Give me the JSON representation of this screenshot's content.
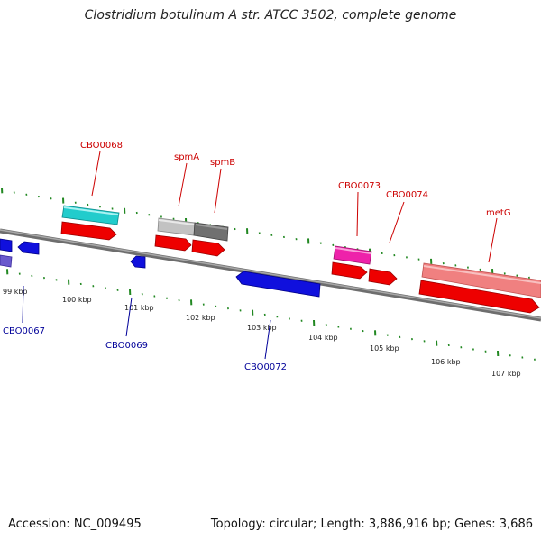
{
  "title": "Clostridium botulinum A str. ATCC 3502, complete genome",
  "footer": {
    "accession": "Accession: NC_009495",
    "summary": "Topology: circular; Length: 3,886,916 bp; Genes: 3,686"
  },
  "scale": {
    "tick_labels": [
      "99 kbp",
      "100 kbp",
      "101 kbp",
      "102 kbp",
      "103 kbp",
      "104 kbp",
      "105 kbp",
      "106 kbp",
      "107 kbp"
    ]
  },
  "gene_labels": {
    "top": [
      "CBO0068",
      "spmA",
      "spmB",
      "CBO0073",
      "CBO0074",
      "metG"
    ],
    "bottom": [
      "CBO0067",
      "CBO0069",
      "CBO0072"
    ]
  },
  "colors": {
    "cds_forward": "#ee0000",
    "cds_reverse": "#0000ee",
    "backbone": "#808080",
    "tick": "#228822",
    "label_top": "#cc0000",
    "label_bottom": "#000099"
  }
}
